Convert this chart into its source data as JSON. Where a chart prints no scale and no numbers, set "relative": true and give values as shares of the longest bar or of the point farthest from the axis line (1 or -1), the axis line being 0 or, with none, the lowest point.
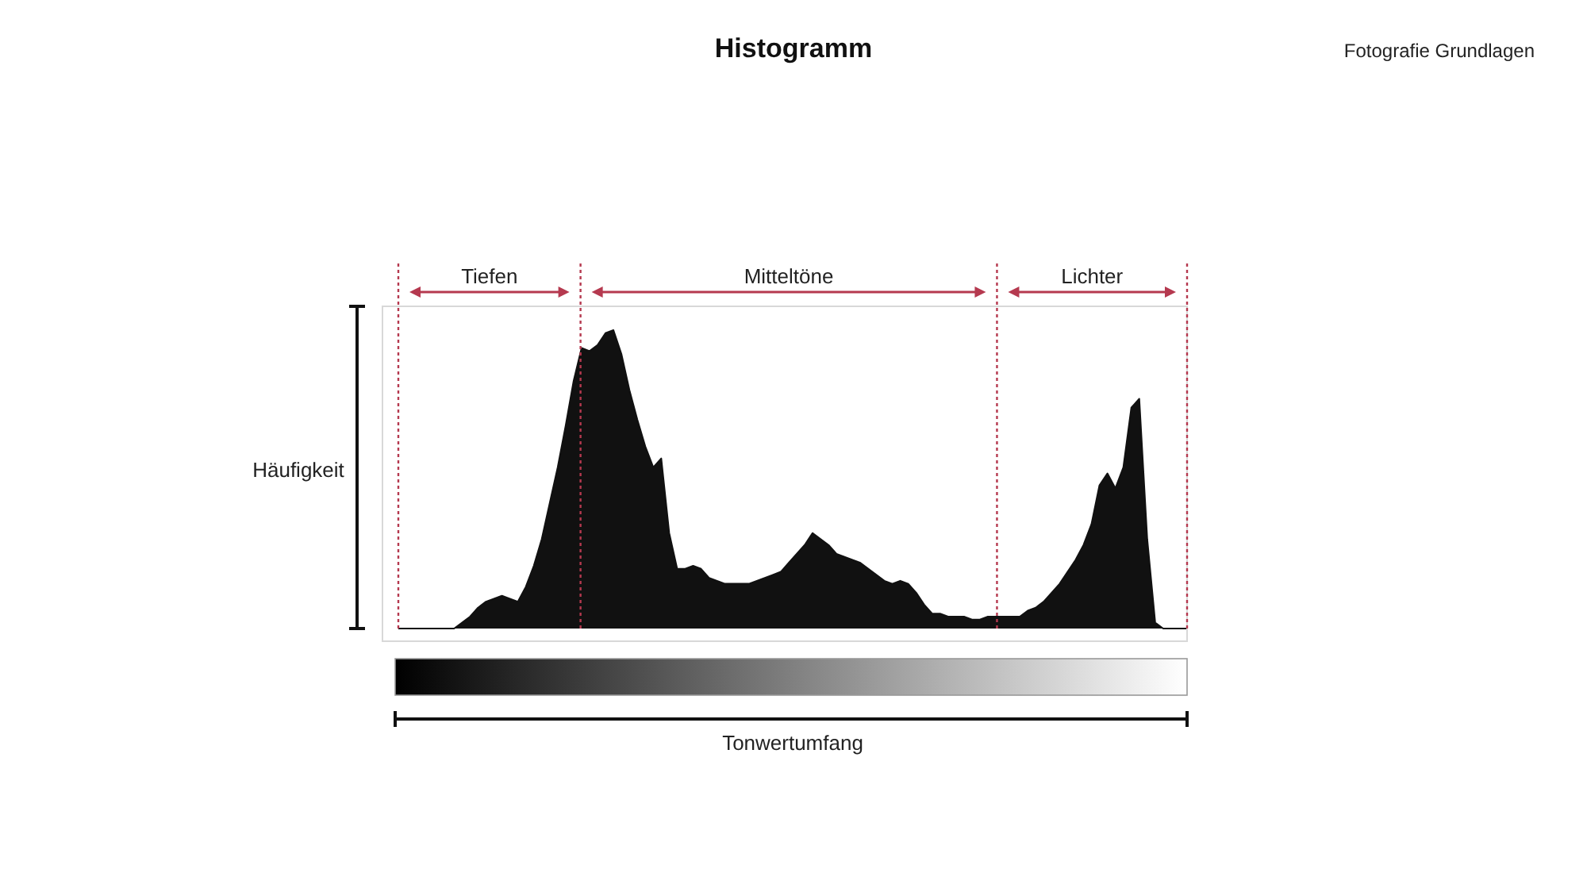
{
  "chart_data": {
    "type": "area",
    "title": "Histogramm",
    "subtitle": "Fotografie Grundlagen",
    "xlabel": "Tonwertumfang",
    "ylabel": "Häufigkeit",
    "relative": true,
    "categories": [
      null,
      null,
      null,
      null,
      null,
      null,
      null,
      null,
      null,
      null,
      null,
      null,
      null,
      null,
      null,
      null,
      null,
      null,
      null,
      null,
      null,
      null,
      null,
      null,
      null,
      null,
      null,
      null,
      null,
      null,
      null,
      null,
      null,
      null,
      null,
      null,
      null,
      null,
      null,
      null,
      null,
      null,
      null,
      null,
      null,
      null,
      null,
      null,
      null,
      null,
      null,
      null,
      null,
      null,
      null,
      null,
      null,
      null,
      null,
      null,
      null,
      null,
      null,
      null,
      null,
      null,
      null,
      null,
      null,
      null,
      null,
      null,
      null,
      null,
      null,
      null,
      null,
      null,
      null,
      null,
      null,
      null,
      null,
      null,
      null,
      null,
      null,
      null,
      null,
      null,
      null,
      null,
      null,
      null,
      null,
      null,
      null,
      null,
      null,
      null
    ],
    "values": [
      0,
      0,
      0,
      0,
      0,
      0,
      0,
      0,
      0.02,
      0.04,
      0.07,
      0.09,
      0.1,
      0.11,
      0.1,
      0.09,
      0.14,
      0.21,
      0.3,
      0.42,
      0.54,
      0.68,
      0.83,
      0.94,
      0.93,
      0.95,
      0.99,
      1,
      0.92,
      0.8,
      0.7,
      0.61,
      0.54,
      0.57,
      0.32,
      0.2,
      0.2,
      0.21,
      0.2,
      0.17,
      0.16,
      0.15,
      0.15,
      0.15,
      0.15,
      0.16,
      0.17,
      0.18,
      0.19,
      0.22,
      0.25,
      0.28,
      0.32,
      0.3,
      0.28,
      0.25,
      0.24,
      0.23,
      0.22,
      0.2,
      0.18,
      0.16,
      0.15,
      0.16,
      0.15,
      0.12,
      0.08,
      0.05,
      0.05,
      0.04,
      0.04,
      0.04,
      0.03,
      0.03,
      0.04,
      0.04,
      0.04,
      0.04,
      0.04,
      0.06,
      0.07,
      0.09,
      0.12,
      0.15,
      0.19,
      0.23,
      0.28,
      0.35,
      0.48,
      0.52,
      0.47,
      0.54,
      0.74,
      0.77,
      0.3,
      0.02,
      0,
      0,
      0,
      0
    ],
    "color": "#111111",
    "annotations": [
      "Tiefen",
      "Mitteltöne",
      "Lichter"
    ]
  }
}
